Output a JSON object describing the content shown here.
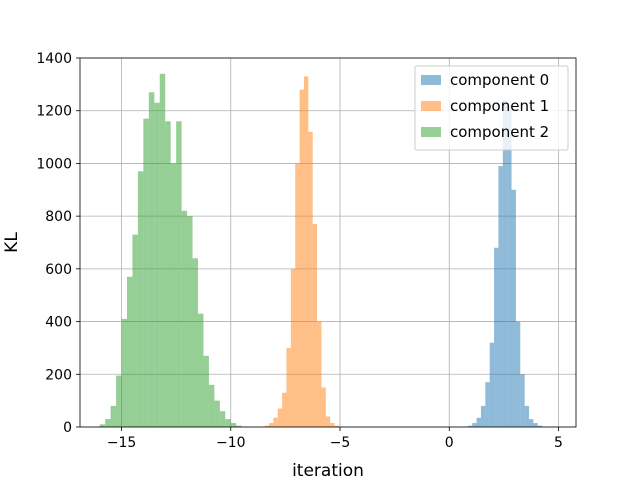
{
  "chart_data": {
    "type": "bar",
    "title": "",
    "xlabel": "iteration",
    "ylabel": "KL",
    "xlim": [
      -16.9,
      5.8
    ],
    "ylim": [
      0,
      1400
    ],
    "xticks": [
      -15,
      -10,
      -5,
      0,
      5
    ],
    "xtick_labels": [
      "−15",
      "−10",
      "−5",
      "0",
      "5"
    ],
    "yticks": [
      0,
      200,
      400,
      600,
      800,
      1000,
      1200,
      1400
    ],
    "ytick_labels": [
      "0",
      "200",
      "400",
      "600",
      "800",
      "1000",
      "1200",
      "1400"
    ],
    "grid": true,
    "legend_position": "top-right",
    "series": [
      {
        "name": "component 0",
        "color": "#1f77b4",
        "opacity": 0.5,
        "bins": [
          [
            0.85,
            1.05,
            5
          ],
          [
            1.05,
            1.25,
            15
          ],
          [
            1.25,
            1.45,
            35
          ],
          [
            1.45,
            1.65,
            80
          ],
          [
            1.65,
            1.85,
            170
          ],
          [
            1.85,
            2.05,
            320
          ],
          [
            2.05,
            2.25,
            680
          ],
          [
            2.25,
            2.45,
            990
          ],
          [
            2.45,
            2.65,
            1240
          ],
          [
            2.65,
            2.85,
            1220
          ],
          [
            2.85,
            3.05,
            900
          ],
          [
            3.05,
            3.25,
            400
          ],
          [
            3.25,
            3.45,
            200
          ],
          [
            3.45,
            3.65,
            80
          ],
          [
            3.65,
            3.85,
            30
          ],
          [
            3.85,
            4.05,
            15
          ],
          [
            4.05,
            4.25,
            5
          ]
        ]
      },
      {
        "name": "component 1",
        "color": "#ff7f0e",
        "opacity": 0.5,
        "bins": [
          [
            -8.45,
            -8.25,
            5
          ],
          [
            -8.25,
            -8.05,
            15
          ],
          [
            -8.05,
            -7.85,
            35
          ],
          [
            -7.85,
            -7.65,
            70
          ],
          [
            -7.65,
            -7.45,
            130
          ],
          [
            -7.45,
            -7.25,
            300
          ],
          [
            -7.25,
            -7.05,
            600
          ],
          [
            -7.05,
            -6.85,
            1000
          ],
          [
            -6.85,
            -6.65,
            1280
          ],
          [
            -6.65,
            -6.45,
            1330
          ],
          [
            -6.45,
            -6.25,
            1120
          ],
          [
            -6.25,
            -6.05,
            770
          ],
          [
            -6.05,
            -5.85,
            400
          ],
          [
            -5.85,
            -5.65,
            150
          ],
          [
            -5.65,
            -5.45,
            40
          ],
          [
            -5.45,
            -5.25,
            15
          ],
          [
            -5.25,
            -5.05,
            5
          ]
        ]
      },
      {
        "name": "component 2",
        "color": "#2ca02c",
        "opacity": 0.5,
        "bins": [
          [
            -16.0,
            -15.75,
            10
          ],
          [
            -15.75,
            -15.5,
            30
          ],
          [
            -15.5,
            -15.25,
            80
          ],
          [
            -15.25,
            -15.0,
            195
          ],
          [
            -15.0,
            -14.75,
            410
          ],
          [
            -14.75,
            -14.5,
            570
          ],
          [
            -14.5,
            -14.25,
            730
          ],
          [
            -14.25,
            -14.0,
            970
          ],
          [
            -14.0,
            -13.75,
            1170
          ],
          [
            -13.75,
            -13.5,
            1270
          ],
          [
            -13.5,
            -13.25,
            1230
          ],
          [
            -13.25,
            -13.0,
            1340
          ],
          [
            -13.0,
            -12.75,
            1160
          ],
          [
            -12.75,
            -12.5,
            1000
          ],
          [
            -12.5,
            -12.25,
            1160
          ],
          [
            -12.25,
            -12.0,
            820
          ],
          [
            -12.0,
            -11.75,
            800
          ],
          [
            -11.75,
            -11.5,
            640
          ],
          [
            -11.5,
            -11.25,
            430
          ],
          [
            -11.25,
            -11.0,
            270
          ],
          [
            -11.0,
            -10.75,
            160
          ],
          [
            -10.75,
            -10.5,
            100
          ],
          [
            -10.5,
            -10.25,
            60
          ],
          [
            -10.25,
            -10.0,
            30
          ],
          [
            -10.0,
            -9.75,
            15
          ],
          [
            -9.75,
            -9.5,
            5
          ]
        ]
      }
    ]
  }
}
